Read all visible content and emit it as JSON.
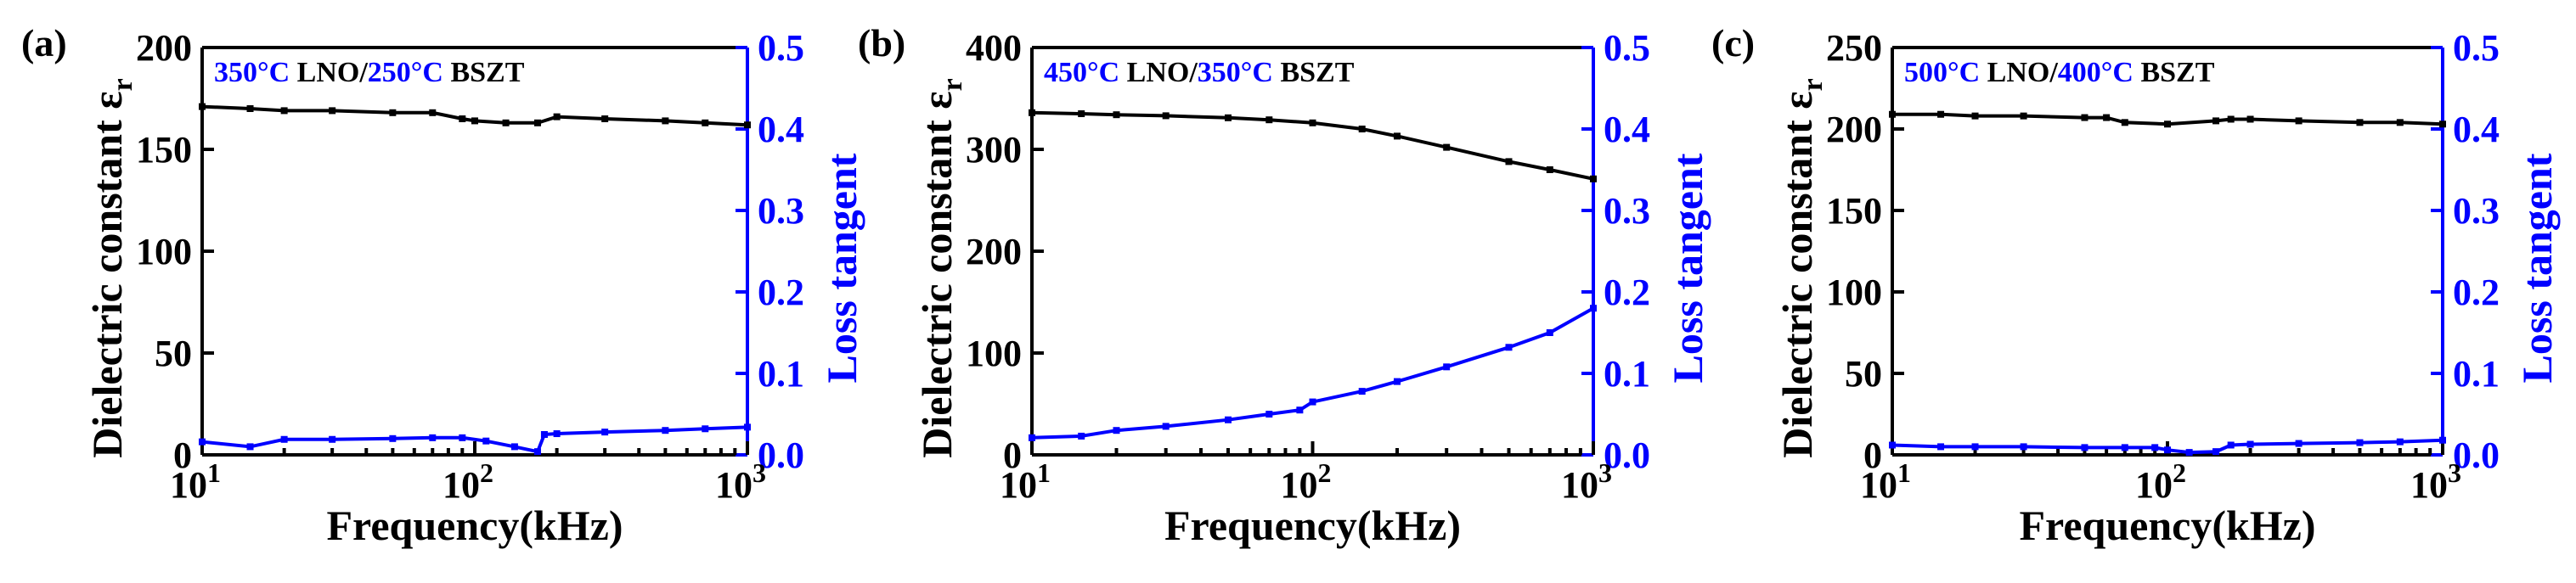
{
  "chart_data": [
    {
      "type": "line",
      "panel": "(a)",
      "legend": [
        {
          "text": "350°C",
          "color": "#0000ff"
        },
        {
          "text": " LNO/",
          "color": "#000000"
        },
        {
          "text": "250°C",
          "color": "#0000ff"
        },
        {
          "text": " BSZT",
          "color": "#000000"
        }
      ],
      "xlabel": "Frequency(kHz)",
      "ylabel": "Dielectric constant ε",
      "ylabel_sub": "r",
      "y2label": "Loss tangent",
      "xscale": "log",
      "xlim": [
        10,
        1000
      ],
      "xticks": [
        {
          "v": 10,
          "base": "10",
          "exp": "1"
        },
        {
          "v": 100,
          "base": "10",
          "exp": "2"
        },
        {
          "v": 1000,
          "base": "10",
          "exp": "3"
        }
      ],
      "ylim": [
        0,
        200
      ],
      "yticks": [
        0,
        50,
        100,
        150,
        200
      ],
      "y2lim": [
        0,
        0.5
      ],
      "y2ticks": [
        "0.0",
        "0.1",
        "0.2",
        "0.3",
        "0.4",
        "0.5"
      ],
      "series": [
        {
          "name": "Dielectric constant",
          "axis": "left",
          "color": "#000000",
          "x": [
            10,
            15,
            20,
            30,
            50,
            70,
            90,
            100,
            130,
            170,
            200,
            300,
            500,
            700,
            1000
          ],
          "y": [
            171,
            170,
            169,
            169,
            168,
            168,
            165,
            164,
            163,
            163,
            166,
            165,
            164,
            163,
            162
          ]
        },
        {
          "name": "Loss tangent",
          "axis": "right",
          "color": "#0000ff",
          "x": [
            10,
            15,
            20,
            30,
            50,
            70,
            90,
            110,
            140,
            170,
            180,
            200,
            300,
            500,
            700,
            1000
          ],
          "y": [
            0.016,
            0.01,
            0.019,
            0.019,
            0.02,
            0.021,
            0.021,
            0.017,
            0.01,
            0.004,
            0.025,
            0.026,
            0.028,
            0.03,
            0.032,
            0.034
          ]
        }
      ]
    },
    {
      "type": "line",
      "panel": "(b)",
      "legend": [
        {
          "text": "450°C",
          "color": "#0000ff"
        },
        {
          "text": " LNO/",
          "color": "#000000"
        },
        {
          "text": "350°C",
          "color": "#0000ff"
        },
        {
          "text": " BSZT",
          "color": "#000000"
        }
      ],
      "xlabel": "Frequency(kHz)",
      "ylabel": "Dielectric constant ε",
      "ylabel_sub": "r",
      "y2label": "Loss tangent",
      "xscale": "log",
      "xlim": [
        10,
        1000
      ],
      "xticks": [
        {
          "v": 10,
          "base": "10",
          "exp": "1"
        },
        {
          "v": 100,
          "base": "10",
          "exp": "2"
        },
        {
          "v": 1000,
          "base": "10",
          "exp": "3"
        }
      ],
      "ylim": [
        0,
        400
      ],
      "yticks": [
        0,
        100,
        200,
        300,
        400
      ],
      "y2lim": [
        0,
        0.5
      ],
      "y2ticks": [
        "0.0",
        "0.1",
        "0.2",
        "0.3",
        "0.4",
        "0.5"
      ],
      "series": [
        {
          "name": "Dielectric constant",
          "axis": "left",
          "color": "#000000",
          "x": [
            10,
            15,
            20,
            30,
            50,
            70,
            100,
            150,
            200,
            300,
            500,
            700,
            1000
          ],
          "y": [
            336,
            335,
            334,
            333,
            331,
            329,
            326,
            320,
            313,
            302,
            288,
            280,
            271
          ]
        },
        {
          "name": "Loss tangent",
          "axis": "right",
          "color": "#0000ff",
          "x": [
            10,
            15,
            20,
            30,
            50,
            70,
            90,
            100,
            150,
            200,
            300,
            500,
            700,
            1000
          ],
          "y": [
            0.021,
            0.023,
            0.03,
            0.035,
            0.043,
            0.05,
            0.055,
            0.065,
            0.078,
            0.09,
            0.108,
            0.132,
            0.15,
            0.18
          ]
        }
      ]
    },
    {
      "type": "line",
      "panel": "(c)",
      "legend": [
        {
          "text": "500°C",
          "color": "#0000ff"
        },
        {
          "text": " LNO/",
          "color": "#000000"
        },
        {
          "text": "400°C",
          "color": "#0000ff"
        },
        {
          "text": " BSZT",
          "color": "#000000"
        }
      ],
      "xlabel": "Frequency(kHz)",
      "ylabel": "Dielectric constant ε",
      "ylabel_sub": "r",
      "y2label": "Loss tangent",
      "xscale": "log",
      "xlim": [
        10,
        1000
      ],
      "xticks": [
        {
          "v": 10,
          "base": "10",
          "exp": "1"
        },
        {
          "v": 100,
          "base": "10",
          "exp": "2"
        },
        {
          "v": 1000,
          "base": "10",
          "exp": "3"
        }
      ],
      "ylim": [
        0,
        250
      ],
      "yticks": [
        0,
        50,
        100,
        150,
        200,
        250
      ],
      "y2lim": [
        0,
        0.5
      ],
      "y2ticks": [
        "0.0",
        "0.1",
        "0.2",
        "0.3",
        "0.4",
        "0.5"
      ],
      "series": [
        {
          "name": "Dielectric constant",
          "axis": "left",
          "color": "#000000",
          "x": [
            10,
            15,
            20,
            30,
            50,
            60,
            70,
            100,
            150,
            170,
            200,
            300,
            500,
            700,
            1000
          ],
          "y": [
            209,
            209,
            208,
            208,
            207,
            207,
            204,
            203,
            205,
            206,
            206,
            205,
            204,
            204,
            203
          ]
        },
        {
          "name": "Loss tangent",
          "axis": "right",
          "color": "#0000ff",
          "x": [
            10,
            15,
            20,
            30,
            50,
            70,
            90,
            100,
            120,
            150,
            170,
            200,
            300,
            500,
            700,
            1000
          ],
          "y": [
            0.012,
            0.01,
            0.01,
            0.01,
            0.009,
            0.009,
            0.009,
            0.006,
            0.003,
            0.004,
            0.012,
            0.013,
            0.014,
            0.015,
            0.016,
            0.018
          ]
        }
      ]
    }
  ]
}
